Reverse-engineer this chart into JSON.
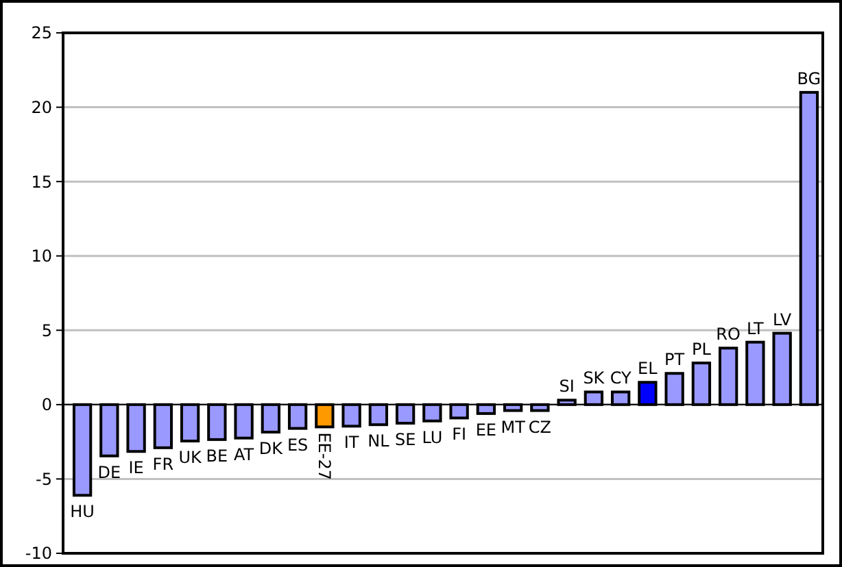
{
  "chart_data": {
    "type": "bar",
    "categories": [
      "HU",
      "DE",
      "IE",
      "FR",
      "UK",
      "BE",
      "AT",
      "DK",
      "ES",
      "EE-27",
      "IT",
      "NL",
      "SE",
      "LU",
      "FI",
      "EE",
      "MT",
      "CZ",
      "SI",
      "SK",
      "CY",
      "EL",
      "PT",
      "PL",
      "RO",
      "LT",
      "LV",
      "BG"
    ],
    "values": [
      -6.1,
      -3.45,
      -3.15,
      -2.9,
      -2.45,
      -2.35,
      -2.25,
      -1.85,
      -1.6,
      -1.5,
      -1.45,
      -1.35,
      -1.25,
      -1.1,
      -0.9,
      -0.6,
      -0.4,
      -0.4,
      0.3,
      0.85,
      0.85,
      1.5,
      2.1,
      2.8,
      3.8,
      4.2,
      4.8,
      21
    ],
    "colors": [
      "#9999ff",
      "#9999ff",
      "#9999ff",
      "#9999ff",
      "#9999ff",
      "#9999ff",
      "#9999ff",
      "#9999ff",
      "#9999ff",
      "#ff9900",
      "#9999ff",
      "#9999ff",
      "#9999ff",
      "#9999ff",
      "#9999ff",
      "#9999ff",
      "#9999ff",
      "#9999ff",
      "#9999ff",
      "#9999ff",
      "#9999ff",
      "#0000ff",
      "#9999ff",
      "#9999ff",
      "#9999ff",
      "#9999ff",
      "#9999ff",
      "#9999ff"
    ],
    "ylim": [
      -10,
      25
    ],
    "yticks": [
      -10,
      -5,
      0,
      5,
      10,
      15,
      20,
      25
    ],
    "grid": "y"
  }
}
